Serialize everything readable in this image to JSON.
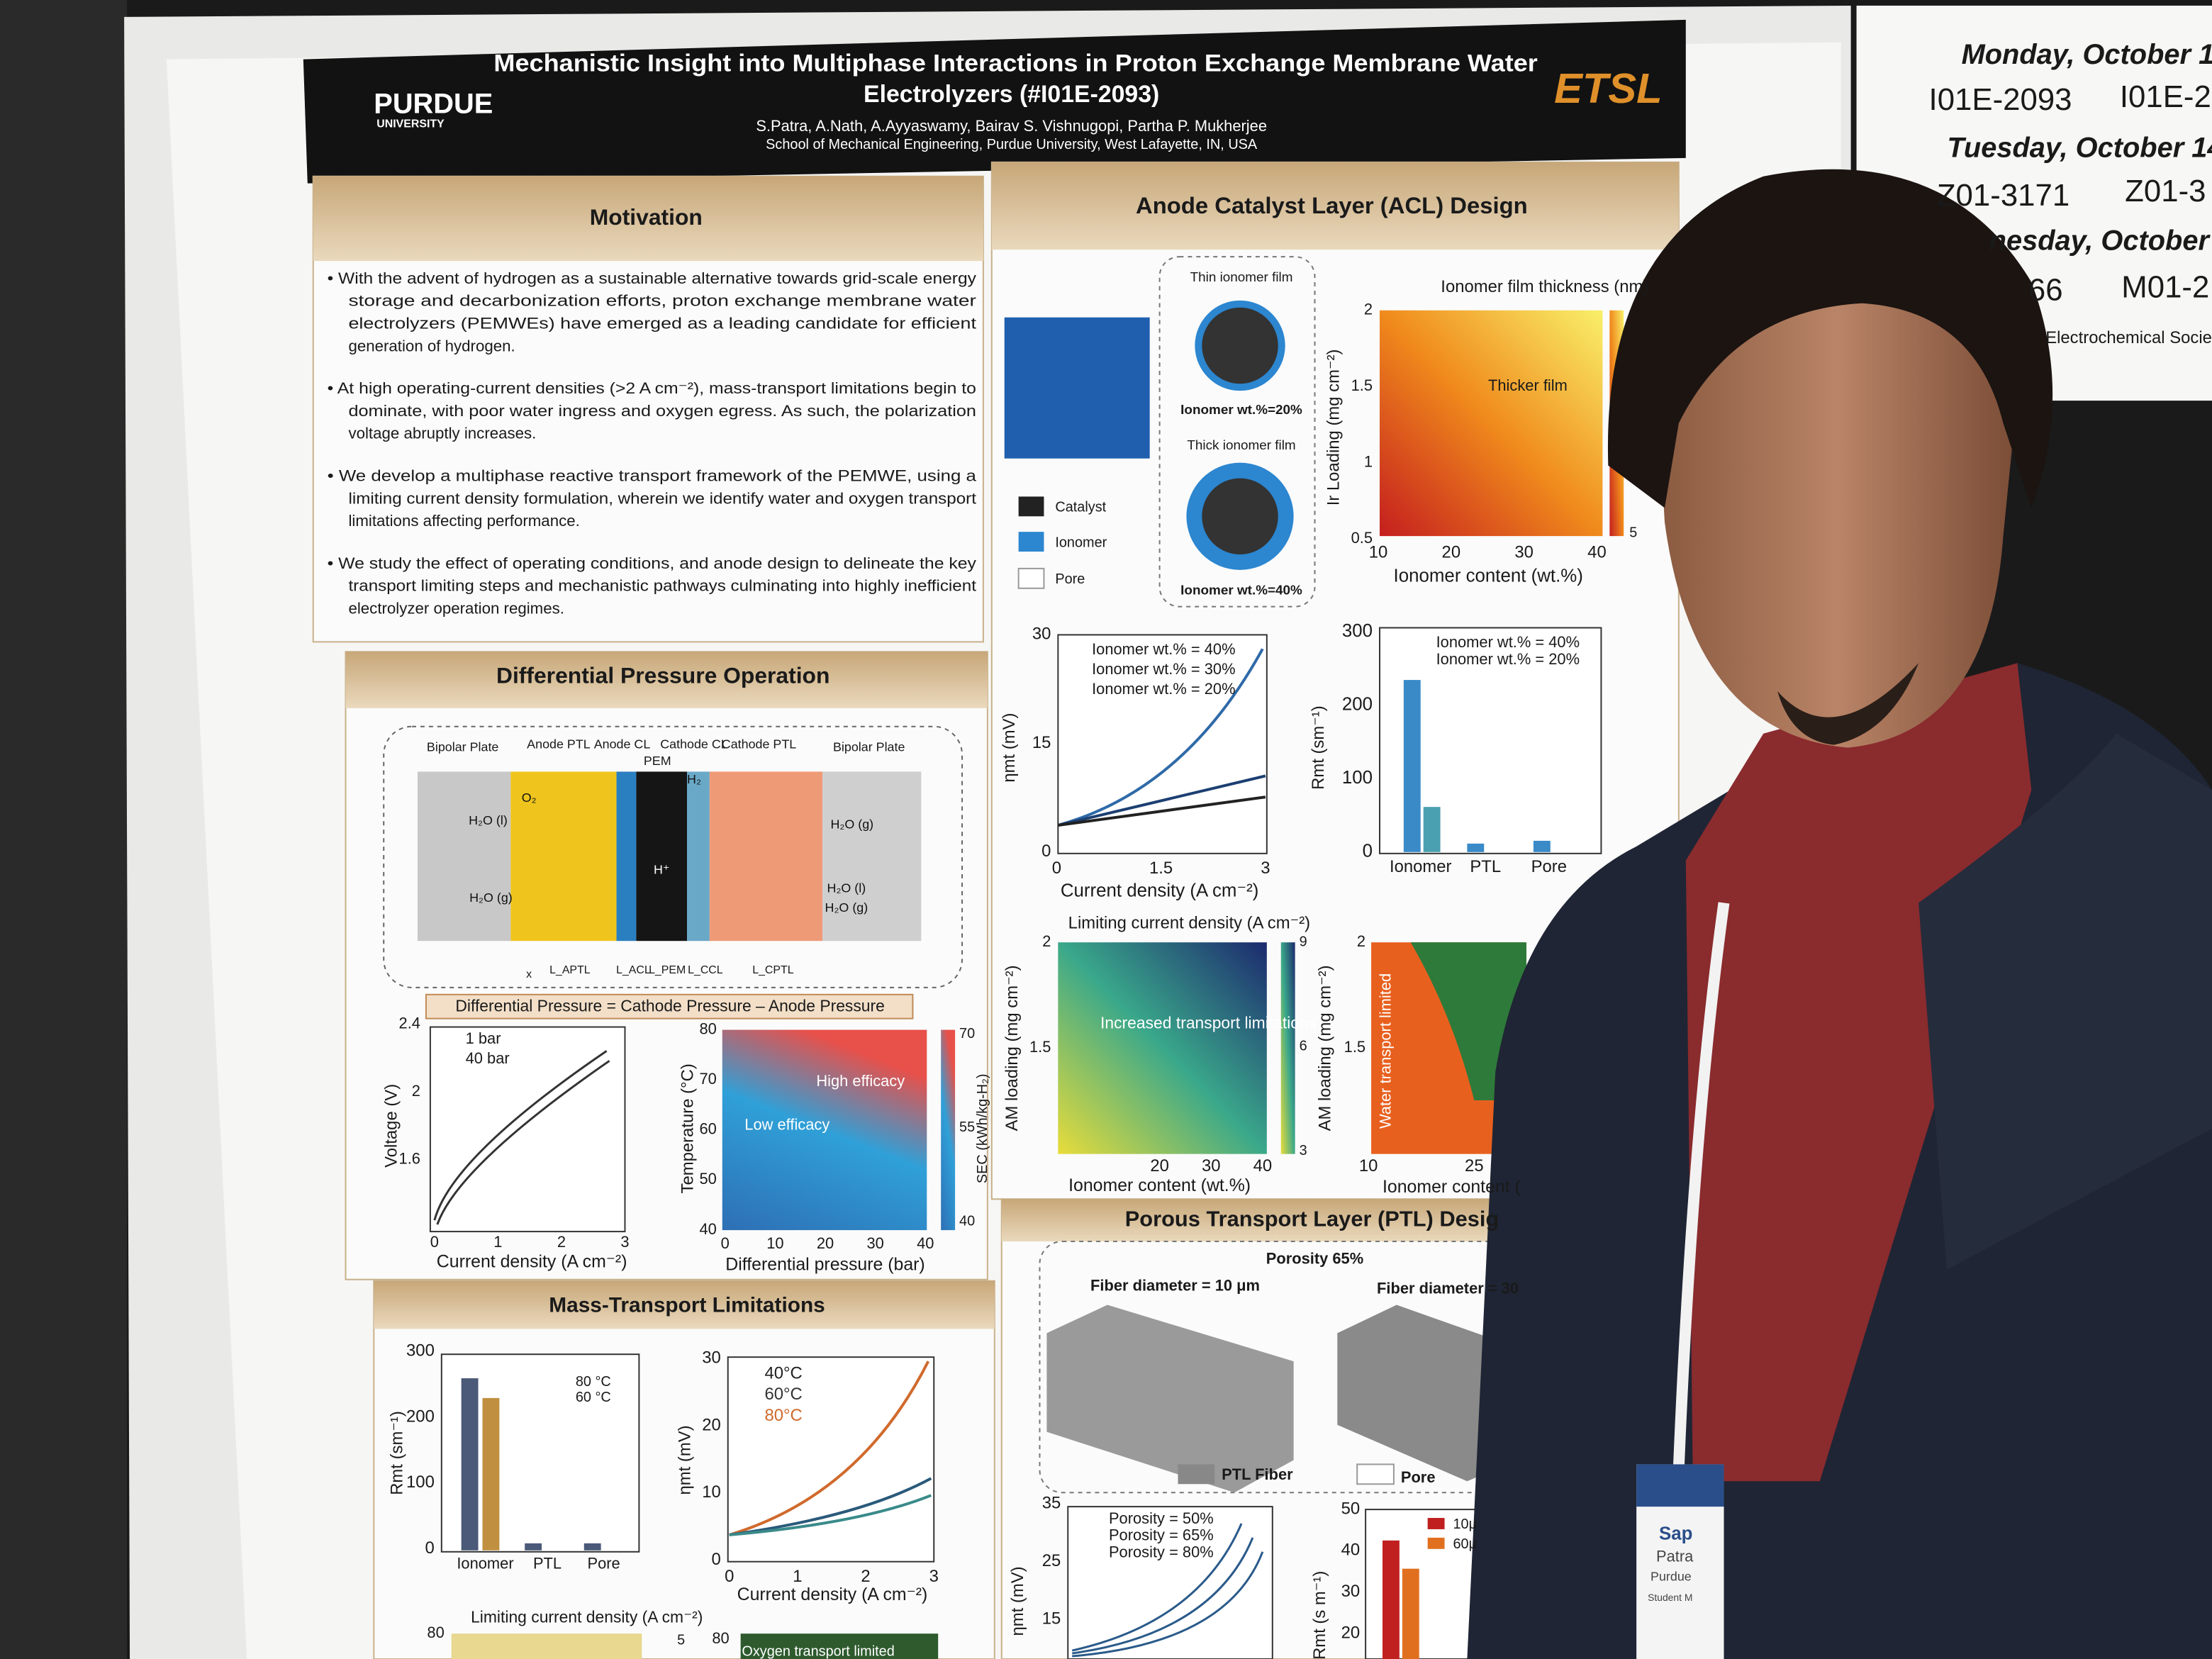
{
  "poster": {
    "header": {
      "logo_left": "PURDUE",
      "logo_left_sub": "UNIVERSITY",
      "title_lines": [
        "Mechanistic Insight into Multiphase Interactions in Proton Exchange Membrane Water",
        "Electrolyzers (#I01E-2093)"
      ],
      "authors": "S.Patra, A.Nath, A.Ayyaswamy, Bairav S. Vishnugopi, Partha P. Mukherjee",
      "affiliation": "School of Mechanical Engineering, Purdue University, West Lafayette, IN, USA",
      "logo_right": "ETSL"
    },
    "motivation": {
      "title": "Motivation",
      "bullets": [
        {
          "lines": [
            "• With the advent of hydrogen as a sustainable alternative towards grid-scale energy",
            "storage and decarbonization efforts, proton exchange membrane water",
            "electrolyzers (PEMWEs) have emerged as a leading candidate for efficient",
            "generation of hydrogen."
          ]
        },
        {
          "lines": [
            "• At high operating-current densities (>2 A cm⁻²), mass-transport limitations begin to",
            "dominate, with poor water ingress and oxygen egress. As such, the polarization",
            "voltage abruptly increases."
          ]
        },
        {
          "lines": [
            "• We develop a multiphase reactive transport framework of the PEMWE, using a",
            "limiting current density formulation, wherein we identify water and oxygen transport",
            "limitations affecting performance."
          ]
        },
        {
          "lines": [
            "• We study the effect of operating conditions, and anode design to delineate the key",
            "transport limiting steps and mechanistic pathways culminating into highly inefficient",
            "electrolyzer operation regimes."
          ]
        }
      ]
    },
    "differential": {
      "title": "Differential Pressure Operation",
      "schematic": {
        "layers": [
          "Bipolar Plate",
          "Anode PTL",
          "Anode CL",
          "PEM",
          "Cathode CL",
          "Cathode PTL",
          "Bipolar Plate"
        ],
        "species": [
          "H₂O (l)",
          "H₂O (g)",
          "O₂",
          "H⁺",
          "H₂",
          "H₂O (g)",
          "H₂O (l)",
          "H₂O (g)"
        ],
        "lengths": [
          "x",
          "L_APTL",
          "L_ACL",
          "L_PEM",
          "L_CCL",
          "L_CPTL"
        ]
      },
      "equation": "Differential Pressure = Cathode Pressure – Anode Pressure",
      "voltage_plot": {
        "ylabel": "Voltage (V)",
        "xlabel": "Current density (A cm⁻²)",
        "yticks": [
          1.6,
          2,
          2.4
        ],
        "xticks": [
          0,
          1,
          2,
          3
        ],
        "legend": [
          "1 bar",
          "40 bar"
        ]
      },
      "sec_map": {
        "ylabel": "Temperature (°C)",
        "xlabel": "Differential pressure (bar)",
        "yticks": [
          40,
          50,
          60,
          70,
          80
        ],
        "xticks": [
          0,
          10,
          20,
          30,
          40
        ],
        "notes": [
          "High efficacy",
          "Low efficacy"
        ],
        "colorbar": [
          70,
          55,
          40
        ],
        "colorbar_label": "SEC (kWh/kg-H₂)"
      }
    },
    "mass_transport": {
      "title": "Mass-Transport Limitations",
      "bar_plot": {
        "ylabel": "Rmt (sm⁻¹)",
        "yticks": [
          0,
          100,
          200,
          300
        ],
        "categories": [
          "Ionomer",
          "PTL",
          "Pore"
        ],
        "legend": [
          "80 °C",
          "60 °C"
        ]
      },
      "line_plot": {
        "ylabel": "ηmt (mV)",
        "xlabel": "Current density (A cm⁻²)",
        "yticks": [
          0,
          10,
          20,
          30
        ],
        "xticks": [
          0,
          1,
          2,
          3
        ],
        "legend": [
          "40°C",
          "60°C",
          "80°C"
        ]
      },
      "map": {
        "title": "Limiting current density (A cm⁻²)",
        "ytick": 80,
        "colorbar": 5,
        "ytick2": 80,
        "note": "Oxygen transport limited"
      }
    },
    "acl": {
      "title": "Anode Catalyst Layer (ACL) Design",
      "legend": [
        "Catalyst",
        "Ionomer",
        "Pore"
      ],
      "films": [
        "Thin ionomer film",
        "Ionomer wt.%=20%",
        "Thick ionomer film",
        "Ionomer wt.%=40%"
      ],
      "thickness_map": {
        "title": "Ionomer film thickness (nm)",
        "ylabel": "Ir Loading (mg cm⁻²)",
        "xlabel": "Ionomer content (wt.%)",
        "yticks": [
          0.5,
          1,
          1.5,
          2
        ],
        "xticks": [
          10,
          20,
          30,
          40
        ],
        "note": "Thicker film",
        "colorbar": 5
      },
      "line_plot": {
        "ylabel": "ηmt (mV)",
        "xlabel": "Current density (A cm⁻²)",
        "yticks": [
          0,
          15,
          30
        ],
        "xticks": [
          0,
          1.5,
          3
        ],
        "legend": [
          "Ionomer wt.% = 40%",
          "Ionomer wt.% = 30%",
          "Ionomer wt.% = 20%"
        ]
      },
      "bar_plot": {
        "ylabel": "Rmt (sm⁻¹)",
        "yticks": [
          0,
          100,
          200,
          300
        ],
        "categories": [
          "Ionomer",
          "PTL",
          "Pore"
        ],
        "legend": [
          "Ionomer wt.% = 40%",
          "Ionomer wt.% = 20%"
        ]
      },
      "limit_map": {
        "title": "Limiting current density (A cm⁻²)",
        "note": "Increased transport limitations",
        "ylabel": "AM loading (mg cm⁻²)",
        "xlabel": "Ionomer content (wt.%)",
        "yticks": [
          1.5,
          2
        ],
        "xticks": [
          20,
          30,
          40
        ],
        "colorbar": [
          9,
          6,
          3
        ]
      },
      "water_map": {
        "note": "Water transport limited",
        "ylabel": "AM loading (mg cm⁻²)",
        "yticks": [
          1.5,
          2
        ],
        "xticks": [
          10,
          25
        ],
        "xlabel": "Ionomer content ("
      }
    },
    "ptl": {
      "title": "Porous Transport Layer (PTL) Desig",
      "porosity": "Porosity 65%",
      "fibers": [
        "Fiber diameter = 10 μm",
        "Fiber diameter = 30"
      ],
      "legend": [
        "PTL Fiber",
        "Pore"
      ],
      "line_plot": {
        "ylabel": "ηmt (mV)",
        "yticks": [
          15,
          25,
          35
        ],
        "legend": [
          "Porosity = 50%",
          "Porosity = 65%",
          "Porosity = 80%"
        ]
      },
      "bar_plot": {
        "ylabel": "Rmt (s m⁻¹)",
        "yticks": [
          20,
          30,
          40,
          50
        ],
        "legend": [
          "10μ",
          "60μ"
        ]
      }
    }
  },
  "schedule": {
    "days": [
      "Monday, October 1",
      "Tuesday, October 14",
      "nesday, October"
    ],
    "codes": [
      "I01E-2093",
      "I01E-2",
      "Z01-3171",
      "Z01-3",
      "66",
      "M01-2"
    ],
    "footer": "Electrochemical Socie"
  },
  "badge": {
    "lines": [
      "Sap",
      "Patra",
      "Purdue",
      "Student M"
    ]
  }
}
